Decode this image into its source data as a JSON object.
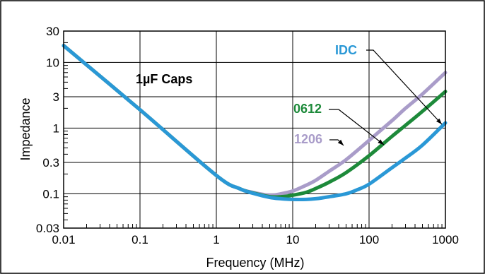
{
  "chart_data": {
    "type": "line",
    "xlabel": "Frequency (MHz)",
    "ylabel": "Impedance",
    "xscale": "log",
    "yscale": "log",
    "xlim": [
      0.01,
      1000
    ],
    "ylim": [
      0.03,
      30
    ],
    "x_ticks": [
      0.01,
      0.1,
      1,
      10,
      100,
      1000
    ],
    "x_tick_labels": [
      "0.01",
      "0.1",
      "1",
      "10",
      "100",
      "1000"
    ],
    "y_ticks": [
      0.03,
      0.1,
      0.3,
      1,
      3,
      10,
      30
    ],
    "y_tick_labels": [
      "0.03",
      "0.1",
      "0.3",
      "1",
      "3",
      "10",
      "30"
    ],
    "grid": true,
    "title_annotation": "1µF Caps",
    "series": [
      {
        "name": "1206",
        "color": "#a99cc9",
        "x": [
          0.01,
          0.1,
          1,
          2,
          3,
          5,
          7,
          10,
          15,
          20,
          30,
          50,
          100,
          200,
          300,
          500,
          1000
        ],
        "y": [
          18,
          1.9,
          0.19,
          0.12,
          0.105,
          0.095,
          0.1,
          0.11,
          0.135,
          0.16,
          0.22,
          0.33,
          0.65,
          1.3,
          2,
          3.3,
          7
        ]
      },
      {
        "name": "0612",
        "color": "#1d8a3a",
        "x": [
          0.01,
          0.1,
          1,
          2,
          3,
          5,
          7,
          10,
          15,
          20,
          30,
          50,
          100,
          200,
          300,
          500,
          1000
        ],
        "y": [
          18,
          1.9,
          0.19,
          0.12,
          0.103,
          0.09,
          0.09,
          0.095,
          0.105,
          0.12,
          0.15,
          0.21,
          0.38,
          0.75,
          1.1,
          1.8,
          3.6
        ]
      },
      {
        "name": "IDC",
        "color": "#2a98d6",
        "x": [
          0.01,
          0.1,
          1,
          2,
          3,
          5,
          7,
          10,
          15,
          20,
          30,
          50,
          70,
          100,
          200,
          300,
          500,
          1000
        ],
        "y": [
          18,
          1.9,
          0.19,
          0.12,
          0.102,
          0.088,
          0.084,
          0.082,
          0.082,
          0.084,
          0.09,
          0.1,
          0.115,
          0.14,
          0.25,
          0.35,
          0.55,
          1.2
        ]
      }
    ]
  }
}
